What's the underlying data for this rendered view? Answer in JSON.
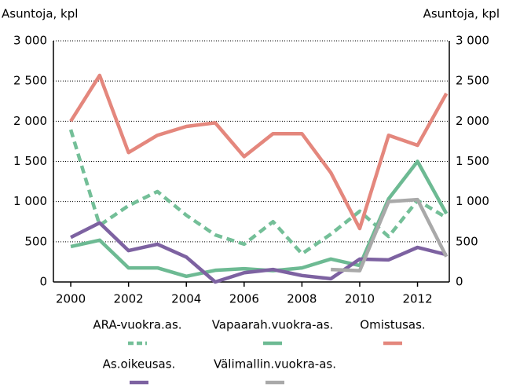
{
  "chart_data": {
    "type": "line",
    "y_label": "Asuntoja, kpl",
    "y2_label": "Asuntoja, kpl",
    "x": [
      2000,
      2001,
      2002,
      2003,
      2004,
      2005,
      2006,
      2007,
      2008,
      2009,
      2010,
      2011,
      2012,
      2013
    ],
    "xlim": [
      1999.4,
      2013.1
    ],
    "xticks": [
      2000,
      2002,
      2004,
      2006,
      2008,
      2010,
      2012
    ],
    "ylim": [
      0,
      3000
    ],
    "yticks": [
      0,
      {
        "value": 500,
        "label": "500"
      },
      {
        "value": 1000,
        "label": "1 000"
      },
      {
        "value": 1500,
        "label": "1 500"
      },
      {
        "value": 2000,
        "label": "2 000"
      },
      {
        "value": 2500,
        "label": "2 500"
      },
      {
        "value": 3000,
        "label": "3 000"
      }
    ],
    "grid": true,
    "series": [
      {
        "name": "ARA-vuokra.as.",
        "color": "#74bf98",
        "style": "dashed",
        "values": [
          1895,
          705,
          950,
          1125,
          830,
          585,
          470,
          750,
          350,
          595,
          880,
          565,
          1015,
          800
        ]
      },
      {
        "name": "Vapaarah.vuokra-as.",
        "color": "#6dba93",
        "style": "solid",
        "values": [
          440,
          520,
          175,
          175,
          70,
          145,
          165,
          140,
          175,
          285,
          205,
          1035,
          1500,
          850
        ]
      },
      {
        "name": "Omistusas.",
        "color": "#e4877d",
        "style": "solid",
        "values": [
          2000,
          2570,
          1610,
          1825,
          1935,
          1980,
          1560,
          1845,
          1845,
          1360,
          665,
          1825,
          1700,
          2345
        ]
      },
      {
        "name": "As.oikeusas.",
        "color": "#7d62a1",
        "style": "solid",
        "values": [
          555,
          735,
          390,
          470,
          310,
          0,
          115,
          155,
          80,
          40,
          285,
          275,
          430,
          340
        ]
      },
      {
        "name": "Välimallin.vuokra-as.",
        "color": "#a9a9a9",
        "style": "solid",
        "values": [
          null,
          null,
          null,
          null,
          null,
          null,
          null,
          null,
          null,
          155,
          140,
          1000,
          1025,
          315
        ]
      }
    ]
  }
}
